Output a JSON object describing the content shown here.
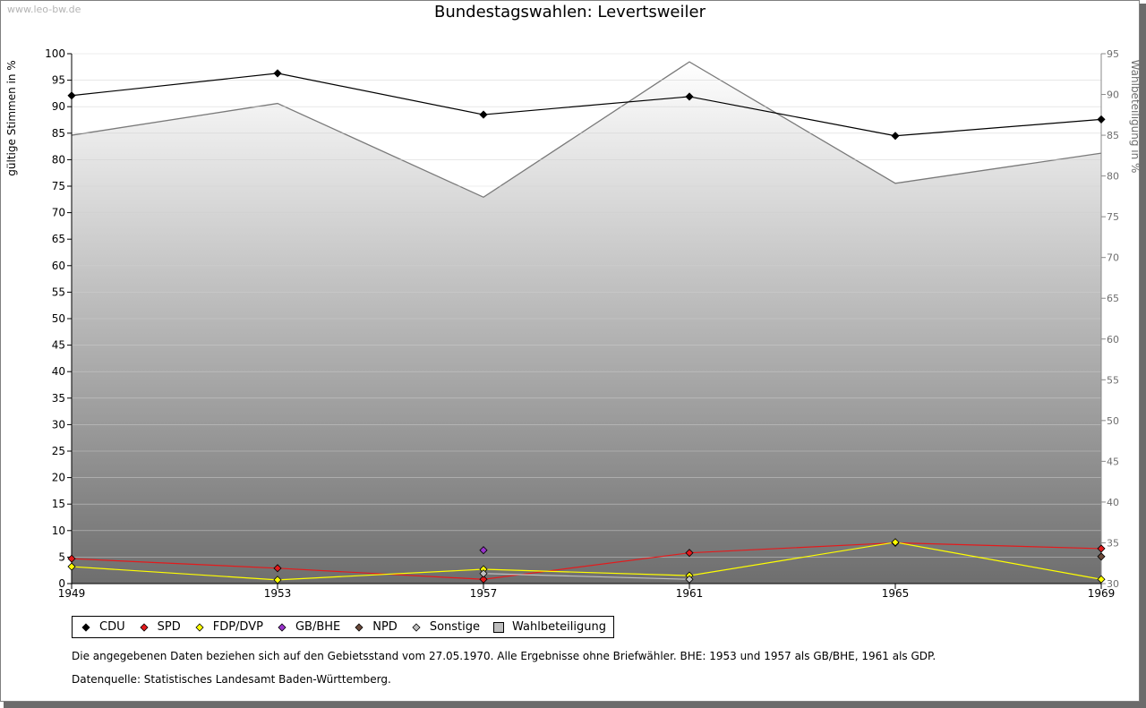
{
  "watermark": "www.leo-bw.de",
  "chart_data": {
    "type": "line",
    "title": "Bundestagswahlen: Levertsweiler",
    "ylabel": "gültige Stimmen in %",
    "y2label": "Wahlbeteiligung in %",
    "x": [
      1949,
      1953,
      1957,
      1961,
      1965,
      1969
    ],
    "ylim": [
      0,
      100
    ],
    "y2lim": [
      30,
      95
    ],
    "yticks": [
      0,
      5,
      10,
      15,
      20,
      25,
      30,
      35,
      40,
      45,
      50,
      55,
      60,
      65,
      70,
      75,
      80,
      85,
      90,
      95,
      100
    ],
    "y2ticks": [
      30,
      35,
      40,
      45,
      50,
      55,
      60,
      65,
      70,
      75,
      80,
      85,
      90,
      95
    ],
    "grid": true,
    "legend_position": "bottom",
    "series": [
      {
        "name": "CDU",
        "color": "#000000",
        "values": [
          92.1,
          96.3,
          88.5,
          91.9,
          84.5,
          87.6
        ]
      },
      {
        "name": "SPD",
        "color": "#e41a1c",
        "values": [
          4.7,
          2.9,
          0.8,
          5.8,
          7.7,
          6.6
        ]
      },
      {
        "name": "FDP/DVP",
        "color": "#ffff00",
        "values": [
          3.2,
          0.7,
          2.7,
          1.5,
          7.8,
          0.8
        ]
      },
      {
        "name": "GB/BHE",
        "color": "#9933cc",
        "values": [
          null,
          null,
          6.3,
          null,
          null,
          null
        ]
      },
      {
        "name": "NPD",
        "color": "#6b4a3a",
        "values": [
          null,
          null,
          null,
          null,
          null,
          5.1
        ]
      },
      {
        "name": "Sonstige",
        "color": "#c0c0c0",
        "values": [
          null,
          null,
          1.9,
          0.8,
          null,
          null
        ]
      }
    ],
    "area": {
      "name": "Wahlbeteiligung",
      "values": [
        85.0,
        88.9,
        77.4,
        94.0,
        79.1,
        82.8
      ],
      "axis": "right"
    }
  },
  "notes": [
    "Die angegebenen Daten beziehen sich auf den Gebietsstand vom 27.05.1970. Alle Ergebnisse ohne Briefwähler. BHE: 1953 und 1957 als GB/BHE, 1961 als GDP.",
    "Datenquelle: Statistisches Landesamt Baden-Württemberg."
  ]
}
